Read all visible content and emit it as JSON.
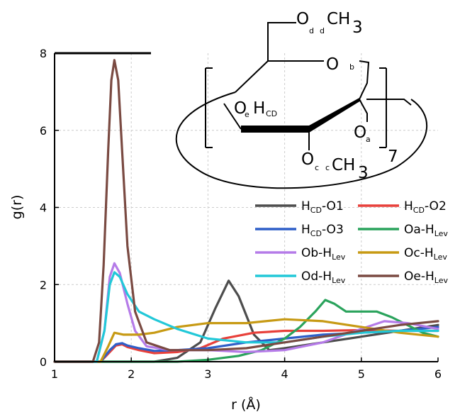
{
  "chart_data": {
    "type": "line",
    "xlabel": "r (Å)",
    "ylabel": "g(r)",
    "xlim": [
      1,
      6
    ],
    "ylim": [
      0,
      8
    ],
    "x_ticks": [
      "1",
      "2",
      "3",
      "4",
      "5",
      "6"
    ],
    "y_ticks": [
      "0",
      "2",
      "4",
      "6",
      "8"
    ],
    "grid": true,
    "legend_position": "right",
    "series": [
      {
        "name": "HCD-O1",
        "label_main": "H",
        "label_sub": "CD",
        "label_tail": "-O1",
        "color": "#4d4d4d",
        "points": [
          [
            1,
            0
          ],
          [
            2.3,
            0
          ],
          [
            2.6,
            0.1
          ],
          [
            2.9,
            0.5
          ],
          [
            3.1,
            1.4
          ],
          [
            3.27,
            2.1
          ],
          [
            3.4,
            1.7
          ],
          [
            3.6,
            0.7
          ],
          [
            3.8,
            0.3
          ],
          [
            4.0,
            0.35
          ],
          [
            4.5,
            0.5
          ],
          [
            5.0,
            0.65
          ],
          [
            5.5,
            0.8
          ],
          [
            6.0,
            0.95
          ]
        ]
      },
      {
        "name": "HCD-O2",
        "label_main": "H",
        "label_sub": "CD",
        "label_tail": "-O2",
        "color": "#e8403a",
        "points": [
          [
            1,
            0
          ],
          [
            1.6,
            0
          ],
          [
            1.72,
            0.25
          ],
          [
            1.8,
            0.42
          ],
          [
            1.88,
            0.45
          ],
          [
            1.95,
            0.38
          ],
          [
            2.1,
            0.3
          ],
          [
            2.3,
            0.22
          ],
          [
            2.6,
            0.25
          ],
          [
            2.9,
            0.35
          ],
          [
            3.2,
            0.6
          ],
          [
            3.6,
            0.75
          ],
          [
            4.0,
            0.8
          ],
          [
            4.5,
            0.8
          ],
          [
            5.0,
            0.82
          ],
          [
            5.5,
            0.8
          ],
          [
            6.0,
            0.8
          ]
        ]
      },
      {
        "name": "HCD-O3",
        "label_main": "H",
        "label_sub": "CD",
        "label_tail": "-O3",
        "color": "#2e5ec8",
        "points": [
          [
            1,
            0
          ],
          [
            1.6,
            0
          ],
          [
            1.72,
            0.3
          ],
          [
            1.8,
            0.45
          ],
          [
            1.88,
            0.48
          ],
          [
            1.95,
            0.42
          ],
          [
            2.1,
            0.35
          ],
          [
            2.3,
            0.28
          ],
          [
            2.6,
            0.3
          ],
          [
            3.0,
            0.35
          ],
          [
            3.5,
            0.5
          ],
          [
            4.0,
            0.6
          ],
          [
            4.5,
            0.7
          ],
          [
            5.0,
            0.75
          ],
          [
            5.5,
            0.8
          ],
          [
            6.0,
            0.9
          ]
        ]
      },
      {
        "name": "Oa-HLev",
        "label_main": "Oa-H",
        "label_sub": "Lev",
        "label_tail": "",
        "color": "#2aa35c",
        "points": [
          [
            1,
            0
          ],
          [
            2.6,
            0
          ],
          [
            3.0,
            0.05
          ],
          [
            3.4,
            0.15
          ],
          [
            3.7,
            0.3
          ],
          [
            4.0,
            0.6
          ],
          [
            4.2,
            0.9
          ],
          [
            4.4,
            1.3
          ],
          [
            4.53,
            1.6
          ],
          [
            4.65,
            1.5
          ],
          [
            4.8,
            1.3
          ],
          [
            5.0,
            1.3
          ],
          [
            5.2,
            1.3
          ],
          [
            5.4,
            1.15
          ],
          [
            5.6,
            0.95
          ],
          [
            5.8,
            0.75
          ],
          [
            6.0,
            0.65
          ]
        ]
      },
      {
        "name": "Ob-HLev",
        "label_main": "Ob-H",
        "label_sub": "Lev",
        "label_tail": "",
        "color": "#b57be8",
        "points": [
          [
            1,
            0
          ],
          [
            1.55,
            0
          ],
          [
            1.65,
            0.8
          ],
          [
            1.72,
            2.2
          ],
          [
            1.78,
            2.55
          ],
          [
            1.85,
            2.3
          ],
          [
            1.95,
            1.5
          ],
          [
            2.05,
            0.8
          ],
          [
            2.2,
            0.4
          ],
          [
            2.5,
            0.3
          ],
          [
            3.0,
            0.3
          ],
          [
            3.5,
            0.25
          ],
          [
            4.0,
            0.3
          ],
          [
            4.5,
            0.5
          ],
          [
            5.0,
            0.85
          ],
          [
            5.3,
            1.05
          ],
          [
            5.6,
            1.0
          ],
          [
            6.0,
            0.85
          ]
        ]
      },
      {
        "name": "Oc-HLev",
        "label_main": "Oc-H",
        "label_sub": "Lev",
        "label_tail": "",
        "color": "#c79a14",
        "points": [
          [
            1,
            0
          ],
          [
            1.6,
            0
          ],
          [
            1.7,
            0.4
          ],
          [
            1.78,
            0.75
          ],
          [
            1.9,
            0.7
          ],
          [
            2.1,
            0.7
          ],
          [
            2.3,
            0.75
          ],
          [
            2.6,
            0.9
          ],
          [
            3.0,
            1.0
          ],
          [
            3.5,
            1.0
          ],
          [
            4.0,
            1.1
          ],
          [
            4.5,
            1.05
          ],
          [
            5.0,
            0.9
          ],
          [
            5.5,
            0.75
          ],
          [
            6.0,
            0.65
          ]
        ]
      },
      {
        "name": "Od-HLev",
        "label_main": "Od-H",
        "label_sub": "Lev",
        "label_tail": "",
        "color": "#22c8d8",
        "points": [
          [
            1,
            0
          ],
          [
            1.55,
            0
          ],
          [
            1.65,
            0.8
          ],
          [
            1.72,
            2.0
          ],
          [
            1.78,
            2.32
          ],
          [
            1.85,
            2.2
          ],
          [
            1.95,
            1.75
          ],
          [
            2.1,
            1.3
          ],
          [
            2.3,
            1.1
          ],
          [
            2.6,
            0.85
          ],
          [
            3.0,
            0.6
          ],
          [
            3.5,
            0.5
          ],
          [
            4.0,
            0.5
          ],
          [
            4.5,
            0.65
          ],
          [
            5.0,
            0.75
          ],
          [
            5.5,
            0.8
          ],
          [
            6.0,
            0.8
          ]
        ]
      },
      {
        "name": "Oe-HLev",
        "label_main": "Oe-H",
        "label_sub": "Lev",
        "label_tail": "",
        "color": "#7a4a42",
        "points": [
          [
            1,
            0
          ],
          [
            1.5,
            0
          ],
          [
            1.58,
            0.5
          ],
          [
            1.64,
            2.5
          ],
          [
            1.7,
            5.5
          ],
          [
            1.74,
            7.3
          ],
          [
            1.78,
            7.82
          ],
          [
            1.83,
            7.3
          ],
          [
            1.88,
            5.5
          ],
          [
            1.95,
            3.0
          ],
          [
            2.05,
            1.3
          ],
          [
            2.2,
            0.5
          ],
          [
            2.5,
            0.3
          ],
          [
            3.0,
            0.3
          ],
          [
            3.5,
            0.35
          ],
          [
            4.0,
            0.5
          ],
          [
            4.5,
            0.65
          ],
          [
            5.0,
            0.8
          ],
          [
            5.5,
            0.95
          ],
          [
            6.0,
            1.05
          ]
        ]
      }
    ]
  },
  "structure": {
    "top_group": {
      "O": "O",
      "sub1": "d",
      "sub2": "d",
      "CH": "CH",
      "three": "3"
    },
    "ring_oxygen": {
      "O": "O",
      "sub": "b"
    },
    "hydroxyl": {
      "O": "O",
      "sub1": "e",
      "H": "H",
      "sub2": "CD"
    },
    "glycosidic_oxygen": {
      "O": "O",
      "sub": "a"
    },
    "bottom_group": {
      "O": "O",
      "sub1": "c",
      "sub2": "c",
      "CH": "CH",
      "three": "3"
    },
    "repeat_count": "7"
  }
}
